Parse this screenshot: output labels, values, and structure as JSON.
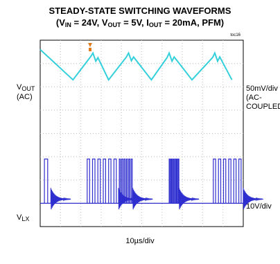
{
  "chart_data": {
    "type": "line",
    "title_line1": "STEADY-STATE SWITCHING WAVEFORMS",
    "title_line2": {
      "p1": "(V",
      "s1": "IN",
      "p2": " = 24V, V",
      "s2": "OUT",
      "p3": " = 5V, I",
      "s3": "OUT",
      "p4": " = 20mA, PFM)"
    },
    "tag": "toc16",
    "grid": true,
    "grid_divisions": {
      "x": 10,
      "y": 8
    },
    "x_scale": "10µs/div",
    "trigger_marker_color": "#e07a1a",
    "series": [
      {
        "name_main": "V",
        "name_sub": "OUT",
        "name_paren": "(AC)",
        "scale_line1": "50mV/div",
        "scale_line2": "(AC-",
        "scale_line3": "COUPLED)",
        "color": "#33d0dc",
        "points": [
          [
            0,
            0.4
          ],
          [
            4.6,
            1.7
          ],
          [
            7.1,
            0.7
          ],
          [
            7.4,
            0.55
          ],
          [
            7.8,
            0.9
          ],
          [
            8.1,
            0.75
          ],
          [
            9.6,
            1.7
          ],
          [
            12.1,
            0.72
          ],
          [
            12.4,
            0.55
          ],
          [
            12.8,
            0.88
          ],
          [
            13.1,
            0.72
          ],
          [
            15.6,
            1.7
          ],
          [
            17.8,
            0.75
          ],
          [
            18.1,
            0.55
          ],
          [
            18.5,
            0.9
          ],
          [
            18.8,
            0.72
          ],
          [
            21.3,
            1.7
          ],
          [
            24.2,
            0.74
          ],
          [
            24.5,
            0.55
          ],
          [
            24.9,
            0.9
          ],
          [
            25.2,
            0.72
          ],
          [
            26.9,
            1.7
          ]
        ]
      },
      {
        "name_main": "V",
        "name_sub": "LX",
        "scale_line1": "10V/div",
        "color": "#2f2fd0",
        "bursts": [
          [
            0.5,
            1.5
          ],
          [
            6.5,
            11
          ],
          [
            11,
            13
          ],
          [
            18,
            19.5
          ],
          [
            24.2,
            28.5
          ]
        ]
      }
    ]
  }
}
